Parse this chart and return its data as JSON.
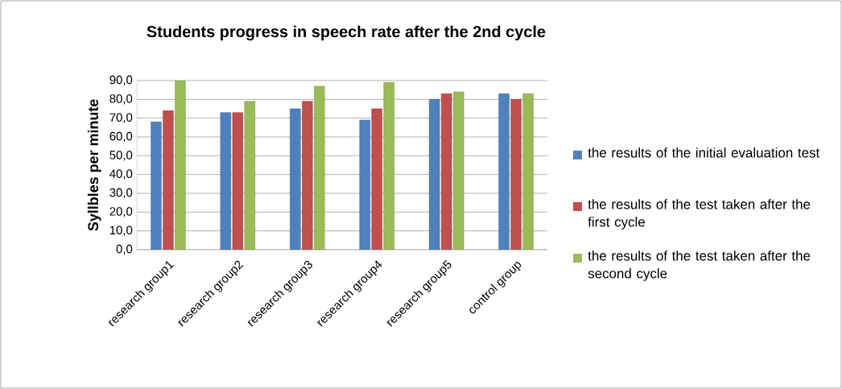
{
  "chart_data": {
    "type": "bar",
    "title": "Students progress in speech rate after the 2nd cycle",
    "ylabel": "Syllbles per minute",
    "categories": [
      "research group1",
      "research group2",
      "research group3",
      "research group4",
      "research group5",
      "control group"
    ],
    "series": [
      {
        "name": "the results of the initial evaluation test",
        "color": "#4f81bd",
        "values": [
          68,
          73,
          75,
          69,
          80,
          83
        ]
      },
      {
        "name": "the results of the test taken after the first cycle",
        "color": "#c0504d",
        "values": [
          74,
          73,
          79,
          75,
          83,
          80
        ]
      },
      {
        "name": "the results of the test taken after the second cycle",
        "color": "#9bbb59",
        "values": [
          90,
          79,
          87,
          89,
          84,
          83
        ]
      }
    ],
    "ylim": [
      0,
      90
    ],
    "yticks": [
      {
        "value": 0,
        "label": "0,0"
      },
      {
        "value": 10,
        "label": "10,0"
      },
      {
        "value": 20,
        "label": "20,0"
      },
      {
        "value": 30,
        "label": "30,0"
      },
      {
        "value": 40,
        "label": "40,0"
      },
      {
        "value": 50,
        "label": "50,0"
      },
      {
        "value": 60,
        "label": "60,0"
      },
      {
        "value": 70,
        "label": "70,0"
      },
      {
        "value": 80,
        "label": "80,0"
      },
      {
        "value": 90,
        "label": "90,0"
      }
    ],
    "grid": "y",
    "legend": "right"
  }
}
